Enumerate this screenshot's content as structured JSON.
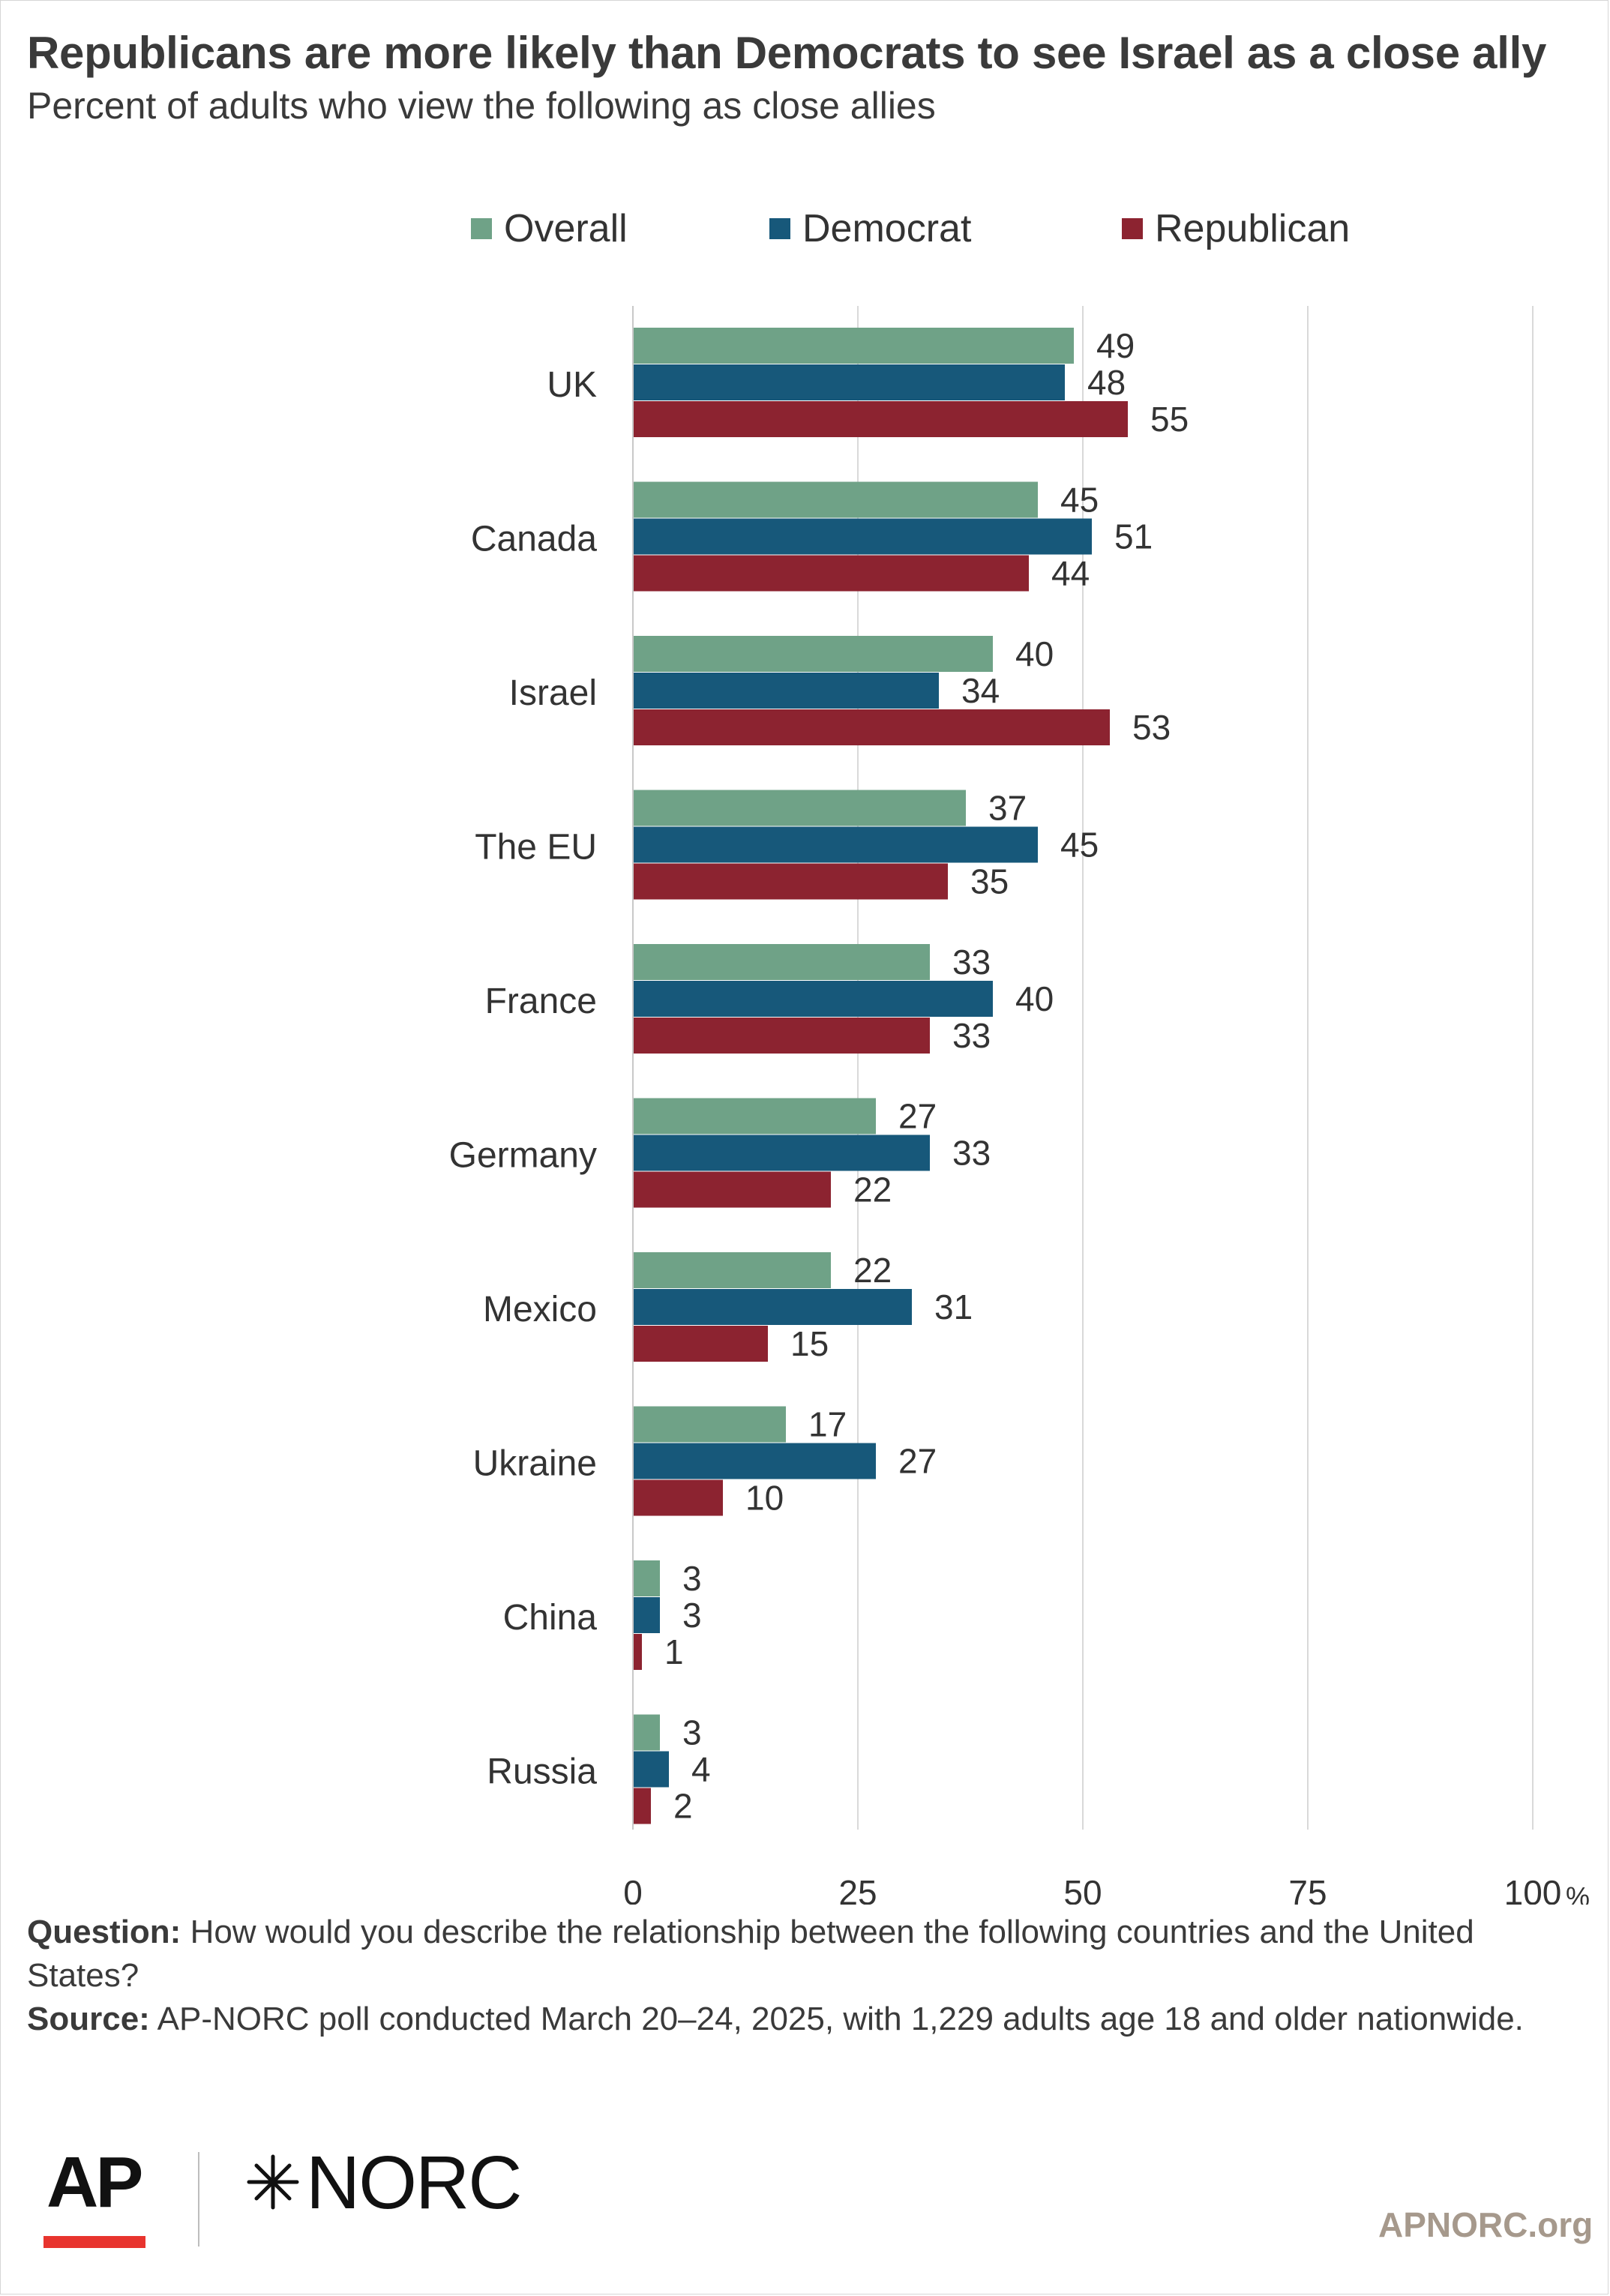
{
  "header": {
    "title": "Republicans are more likely than Democrats to see Israel as a close ally",
    "subtitle": "Percent of adults who view the following as close allies"
  },
  "colors": {
    "overall": "#6fa287",
    "democrat": "#17587a",
    "republican": "#8c2330",
    "grid": "#d9d9d9"
  },
  "chart_data": {
    "type": "bar",
    "orientation": "horizontal",
    "categories": [
      "UK",
      "Canada",
      "Israel",
      "The EU",
      "France",
      "Germany",
      "Mexico",
      "Ukraine",
      "China",
      "Russia"
    ],
    "series": [
      {
        "name": "Overall",
        "values": [
          49,
          45,
          40,
          37,
          33,
          27,
          22,
          17,
          3,
          3
        ]
      },
      {
        "name": "Democrat",
        "values": [
          48,
          51,
          34,
          45,
          40,
          33,
          31,
          27,
          3,
          4
        ]
      },
      {
        "name": "Republican",
        "values": [
          55,
          44,
          53,
          35,
          33,
          22,
          15,
          10,
          1,
          2
        ]
      }
    ],
    "xlim": [
      0,
      100
    ],
    "xticks": [
      "0",
      "25",
      "50",
      "75",
      "100"
    ],
    "x_unit": "%",
    "legend_position": "top",
    "grid": true
  },
  "footnotes": {
    "question_label": "Question:",
    "question_text": "How would you describe the relationship between the following countries and the United States?",
    "source_label": "Source:",
    "source_text": "AP-NORC poll conducted March 20–24, 2025, with 1,229 adults age 18 and older nationwide."
  },
  "branding": {
    "logo_ap": "AP",
    "logo_norc": "NORC",
    "site": "APNORC.org"
  }
}
